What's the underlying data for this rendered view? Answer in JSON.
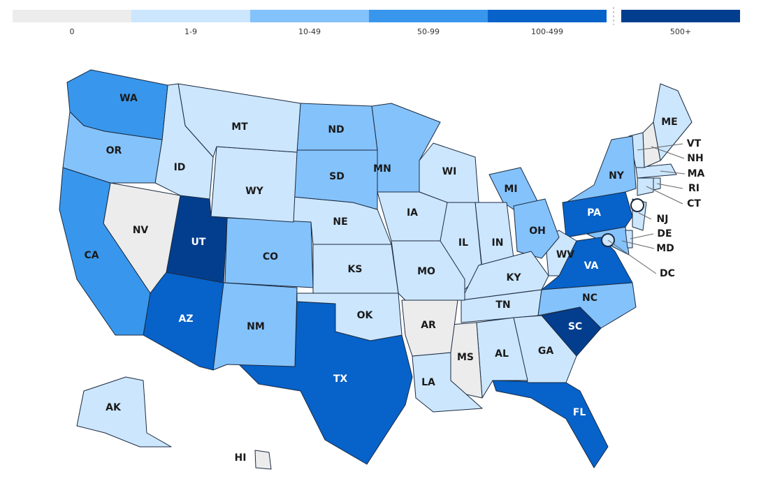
{
  "legend": {
    "bins": [
      {
        "label": "0",
        "color": "#ececec"
      },
      {
        "label": "1-9",
        "color": "#cce6fd"
      },
      {
        "label": "10-49",
        "color": "#84c2fb"
      },
      {
        "label": "50-99",
        "color": "#3897ec"
      },
      {
        "label": "100-499",
        "color": "#0762c9"
      },
      {
        "label": "500+",
        "color": "#033e8e"
      }
    ]
  },
  "states": [
    {
      "label": "WA",
      "bin": 3
    },
    {
      "label": "OR",
      "bin": 2
    },
    {
      "label": "CA",
      "bin": 3
    },
    {
      "label": "NV",
      "bin": 0
    },
    {
      "label": "ID",
      "bin": 1
    },
    {
      "label": "MT",
      "bin": 1
    },
    {
      "label": "WY",
      "bin": 1
    },
    {
      "label": "UT",
      "bin": 5
    },
    {
      "label": "AZ",
      "bin": 4
    },
    {
      "label": "CO",
      "bin": 2
    },
    {
      "label": "NM",
      "bin": 2
    },
    {
      "label": "ND",
      "bin": 2
    },
    {
      "label": "SD",
      "bin": 2
    },
    {
      "label": "NE",
      "bin": 1
    },
    {
      "label": "KS",
      "bin": 1
    },
    {
      "label": "OK",
      "bin": 1
    },
    {
      "label": "TX",
      "bin": 4
    },
    {
      "label": "MN",
      "bin": 2
    },
    {
      "label": "IA",
      "bin": 1
    },
    {
      "label": "MO",
      "bin": 1
    },
    {
      "label": "AR",
      "bin": 0
    },
    {
      "label": "LA",
      "bin": 1
    },
    {
      "label": "MS",
      "bin": 0
    },
    {
      "label": "AL",
      "bin": 1
    },
    {
      "label": "GA",
      "bin": 1
    },
    {
      "label": "FL",
      "bin": 4
    },
    {
      "label": "SC",
      "bin": 5
    },
    {
      "label": "NC",
      "bin": 2
    },
    {
      "label": "TN",
      "bin": 1
    },
    {
      "label": "KY",
      "bin": 1
    },
    {
      "label": "IL",
      "bin": 1
    },
    {
      "label": "IN",
      "bin": 1
    },
    {
      "label": "OH",
      "bin": 2
    },
    {
      "label": "MI",
      "bin": 2
    },
    {
      "label": "WI",
      "bin": 1
    },
    {
      "label": "WV",
      "bin": 1
    },
    {
      "label": "VA",
      "bin": 4
    },
    {
      "label": "PA",
      "bin": 4
    },
    {
      "label": "NY",
      "bin": 2
    },
    {
      "label": "VT",
      "bin": 1
    },
    {
      "label": "NH",
      "bin": 0
    },
    {
      "label": "ME",
      "bin": 1
    },
    {
      "label": "MA",
      "bin": 1
    },
    {
      "label": "CT",
      "bin": 1
    },
    {
      "label": "RI",
      "bin": 1
    },
    {
      "label": "NJ",
      "bin": 1
    },
    {
      "label": "DE",
      "bin": 1
    },
    {
      "label": "MD",
      "bin": 2
    },
    {
      "label": "DC",
      "bin": 1
    },
    {
      "label": "AK",
      "bin": 1
    },
    {
      "label": "HI",
      "bin": 0
    }
  ]
}
